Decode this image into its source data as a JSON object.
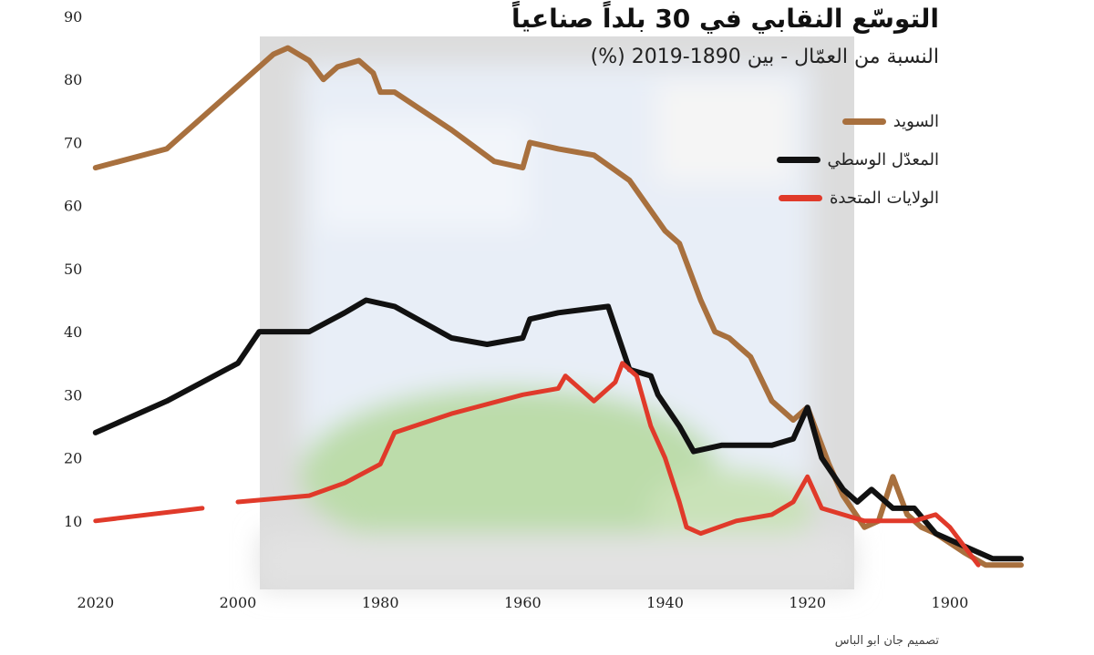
{
  "title": "التوسّع النقابي في 30 بلداً صناعياً",
  "subtitle": "النسبة من العمّال - بين 1890-2019 (%)",
  "credit": "تصميم جان ابو الباس",
  "colors": {
    "sweden": "#a8703e",
    "median": "#111111",
    "usa": "#e03a2a",
    "backdrop": "#dcdcdc"
  },
  "chart_data": {
    "type": "line",
    "title": "التوسّع النقابي في 30 بلداً صناعياً",
    "subtitle": "النسبة من العمّال - بين 1890-2019 (%)",
    "x_reversed": true,
    "xlim": [
      2021,
      1890
    ],
    "ylim": [
      0,
      90
    ],
    "x_ticks": [
      2020,
      2000,
      1980,
      1960,
      1940,
      1920,
      1900
    ],
    "y_ticks": [
      10,
      20,
      30,
      40,
      50,
      60,
      70,
      80,
      90
    ],
    "grid": false,
    "legend_position": "top-right",
    "series": [
      {
        "name": "السويد",
        "key": "sweden",
        "points": [
          [
            2020,
            66
          ],
          [
            2010,
            69
          ],
          [
            2008,
            71
          ],
          [
            2000,
            79
          ],
          [
            1995,
            84
          ],
          [
            1993,
            85
          ],
          [
            1990,
            83
          ],
          [
            1988,
            80
          ],
          [
            1986,
            82
          ],
          [
            1983,
            83
          ],
          [
            1981,
            81
          ],
          [
            1980,
            78
          ],
          [
            1978,
            78
          ],
          [
            1970,
            72
          ],
          [
            1964,
            67
          ],
          [
            1960,
            66
          ],
          [
            1959,
            70
          ],
          [
            1955,
            69
          ],
          [
            1950,
            68
          ],
          [
            1945,
            64
          ],
          [
            1940,
            56
          ],
          [
            1938,
            54
          ],
          [
            1935,
            45
          ],
          [
            1933,
            40
          ],
          [
            1931,
            39
          ],
          [
            1928,
            36
          ],
          [
            1925,
            29
          ],
          [
            1922,
            26
          ],
          [
            1920,
            28
          ],
          [
            1917,
            19
          ],
          [
            1915,
            14
          ],
          [
            1912,
            9
          ],
          [
            1910,
            10
          ],
          [
            1908,
            17
          ],
          [
            1906,
            11
          ],
          [
            1904,
            9
          ],
          [
            1902,
            8
          ],
          [
            1898,
            5
          ],
          [
            1895,
            3
          ],
          [
            1892,
            3
          ],
          [
            1890,
            3
          ]
        ]
      },
      {
        "name": "المعدّل الوسطي",
        "key": "median",
        "points": [
          [
            2020,
            24
          ],
          [
            2010,
            29
          ],
          [
            2000,
            35
          ],
          [
            1997,
            40
          ],
          [
            1990,
            40
          ],
          [
            1985,
            43
          ],
          [
            1982,
            45
          ],
          [
            1978,
            44
          ],
          [
            1970,
            39
          ],
          [
            1965,
            38
          ],
          [
            1960,
            39
          ],
          [
            1959,
            42
          ],
          [
            1955,
            43
          ],
          [
            1948,
            44
          ],
          [
            1945,
            34
          ],
          [
            1942,
            33
          ],
          [
            1941,
            30
          ],
          [
            1938,
            25
          ],
          [
            1936,
            21
          ],
          [
            1932,
            22
          ],
          [
            1925,
            22
          ],
          [
            1922,
            23
          ],
          [
            1920,
            28
          ],
          [
            1918,
            20
          ],
          [
            1915,
            15
          ],
          [
            1913,
            13
          ],
          [
            1911,
            15
          ],
          [
            1908,
            12
          ],
          [
            1905,
            12
          ],
          [
            1902,
            8
          ],
          [
            1898,
            6
          ],
          [
            1894,
            4
          ],
          [
            1890,
            4
          ]
        ]
      },
      {
        "name": "الولايات المتحدة",
        "key": "usa",
        "points": [
          [
            2020,
            10
          ],
          [
            2005,
            12
          ],
          [
            null,
            null
          ],
          [
            2000,
            13
          ],
          [
            1990,
            14
          ],
          [
            1985,
            16
          ],
          [
            1980,
            19
          ],
          [
            1978,
            24
          ],
          [
            1970,
            27
          ],
          [
            1960,
            30
          ],
          [
            1955,
            31
          ],
          [
            1954,
            33
          ],
          [
            1951,
            30
          ],
          [
            1950,
            29
          ],
          [
            1947,
            32
          ],
          [
            1946,
            35
          ],
          [
            1944,
            33
          ],
          [
            1942,
            25
          ],
          [
            1940,
            20
          ],
          [
            1938,
            13
          ],
          [
            1937,
            9
          ],
          [
            1935,
            8
          ],
          [
            1930,
            10
          ],
          [
            1925,
            11
          ],
          [
            1922,
            13
          ],
          [
            1920,
            17
          ],
          [
            1918,
            12
          ],
          [
            1915,
            11
          ],
          [
            1912,
            10
          ],
          [
            1905,
            10
          ],
          [
            1902,
            11
          ],
          [
            1900,
            9
          ],
          [
            1898,
            6
          ],
          [
            1896,
            3
          ]
        ]
      }
    ]
  }
}
